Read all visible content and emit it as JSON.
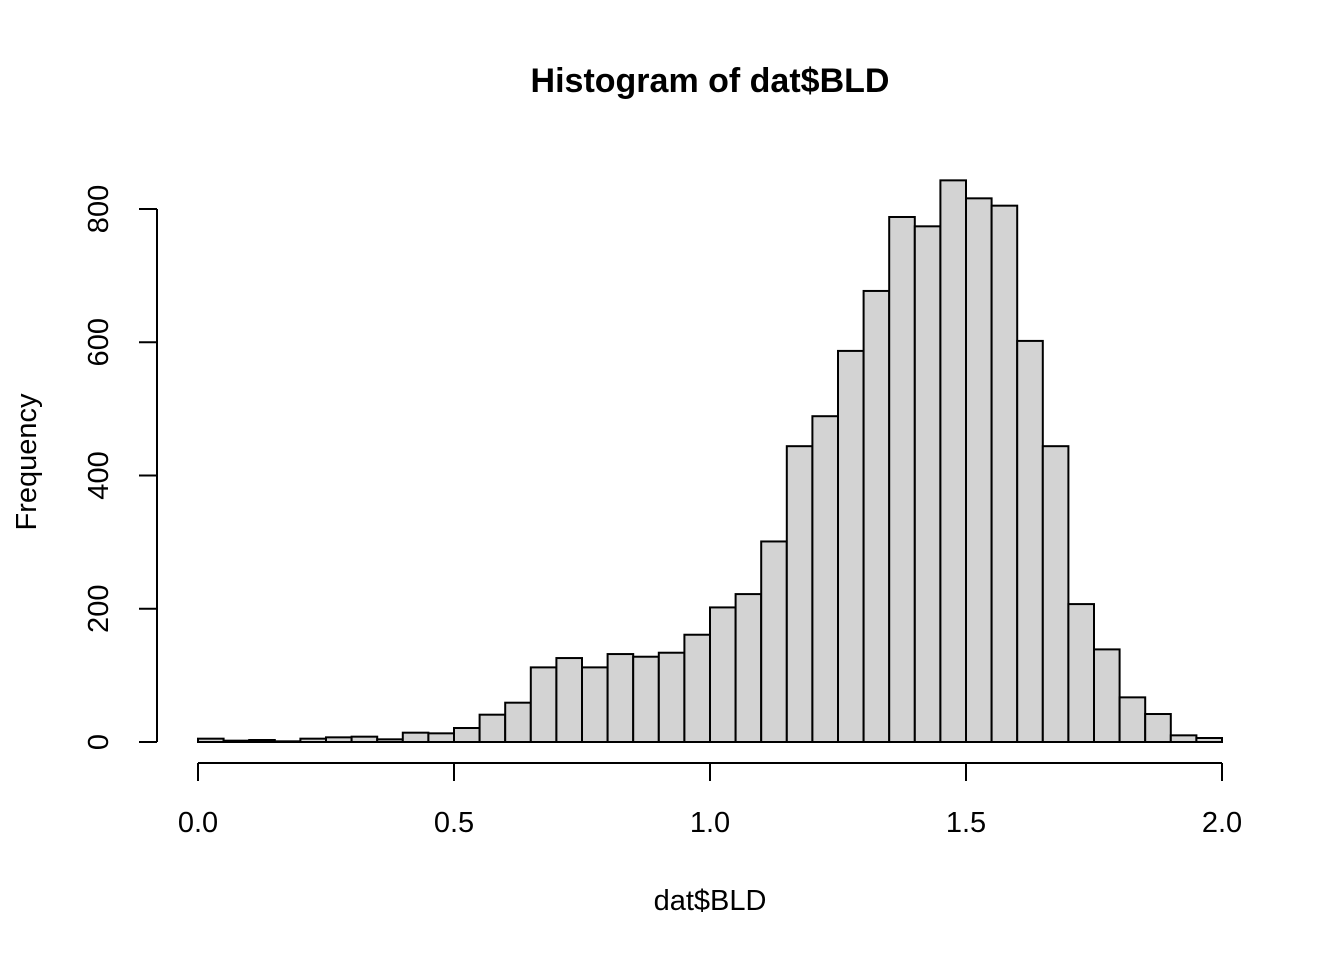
{
  "chart_data": {
    "type": "bar",
    "title": "Histogram of dat$BLD",
    "xlabel": "dat$BLD",
    "ylabel": "Frequency",
    "bin_width": 0.05,
    "bin_edges": [
      0.0,
      0.05,
      0.1,
      0.15,
      0.2,
      0.25,
      0.3,
      0.35,
      0.4,
      0.45,
      0.5,
      0.55,
      0.6,
      0.65,
      0.7,
      0.75,
      0.8,
      0.85,
      0.9,
      0.95,
      1.0,
      1.05,
      1.1,
      1.15,
      1.2,
      1.25,
      1.3,
      1.35,
      1.4,
      1.45,
      1.5,
      1.55,
      1.6,
      1.65,
      1.7,
      1.75,
      1.8,
      1.85,
      1.9,
      1.95,
      2.0
    ],
    "values": [
      5,
      2,
      3,
      1,
      5,
      7,
      8,
      4,
      14,
      13,
      21,
      41,
      59,
      112,
      126,
      112,
      132,
      128,
      134,
      161,
      202,
      222,
      301,
      444,
      489,
      587,
      677,
      788,
      774,
      843,
      816,
      805,
      602,
      444,
      207,
      139,
      67,
      42,
      10,
      6
    ],
    "xlim": [
      0,
      2
    ],
    "ylim": [
      0,
      800
    ],
    "x_ticks": [
      0.0,
      0.5,
      1.0,
      1.5,
      2.0
    ],
    "x_tick_labels": [
      "0.0",
      "0.5",
      "1.0",
      "1.5",
      "2.0"
    ],
    "y_ticks": [
      0,
      200,
      400,
      600,
      800
    ],
    "y_tick_labels": [
      "0",
      "200",
      "400",
      "600",
      "800"
    ],
    "grid": false,
    "bar_color": "#d3d3d3",
    "edge_color": "#000000"
  }
}
